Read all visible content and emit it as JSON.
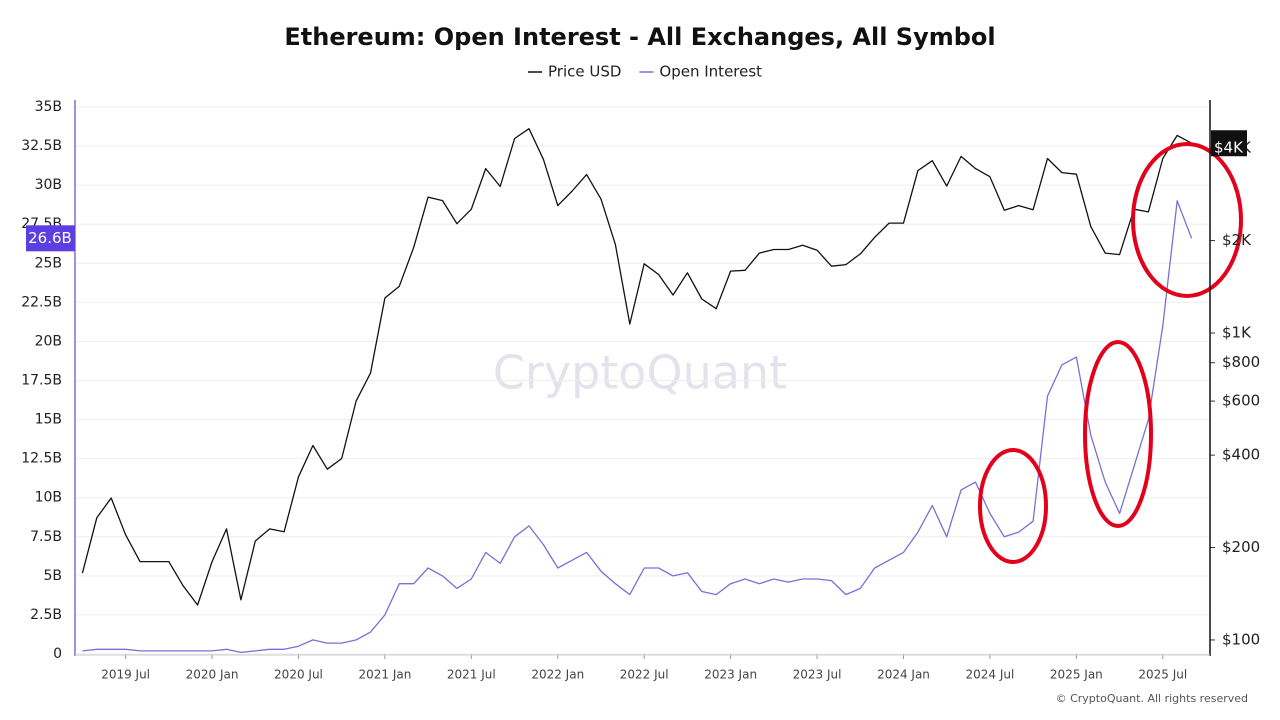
{
  "chart_data": {
    "type": "line",
    "title": "Ethereum: Open Interest - All Exchanges, All Symbol",
    "watermark": "CryptoQuant",
    "footer": "© CryptoQuant. All rights reserved",
    "x": [
      "2019-04",
      "2019-05",
      "2019-06",
      "2019-07",
      "2019-08",
      "2019-09",
      "2019-10",
      "2019-11",
      "2019-12",
      "2020-01",
      "2020-02",
      "2020-03",
      "2020-04",
      "2020-05",
      "2020-06",
      "2020-07",
      "2020-08",
      "2020-09",
      "2020-10",
      "2020-11",
      "2020-12",
      "2021-01",
      "2021-02",
      "2021-03",
      "2021-04",
      "2021-05",
      "2021-06",
      "2021-07",
      "2021-08",
      "2021-09",
      "2021-10",
      "2021-11",
      "2021-12",
      "2022-01",
      "2022-02",
      "2022-03",
      "2022-04",
      "2022-05",
      "2022-06",
      "2022-07",
      "2022-08",
      "2022-09",
      "2022-10",
      "2022-11",
      "2022-12",
      "2023-01",
      "2023-02",
      "2023-03",
      "2023-04",
      "2023-05",
      "2023-06",
      "2023-07",
      "2023-08",
      "2023-09",
      "2023-10",
      "2023-11",
      "2023-12",
      "2024-01",
      "2024-02",
      "2024-03",
      "2024-04",
      "2024-05",
      "2024-06",
      "2024-07",
      "2024-08",
      "2024-09",
      "2024-10",
      "2024-11",
      "2024-12",
      "2025-01",
      "2025-02",
      "2025-03",
      "2025-04",
      "2025-05",
      "2025-06",
      "2025-07",
      "2025-08",
      "2025-09"
    ],
    "xlim": [
      "2019-03",
      "2025-10"
    ],
    "xticks": [
      {
        "value": "2019-07",
        "label": "2019 Jul"
      },
      {
        "value": "2020-01",
        "label": "2020 Jan"
      },
      {
        "value": "2020-07",
        "label": "2020 Jul"
      },
      {
        "value": "2021-01",
        "label": "2021 Jan"
      },
      {
        "value": "2021-07",
        "label": "2021 Jul"
      },
      {
        "value": "2022-01",
        "label": "2022 Jan"
      },
      {
        "value": "2022-07",
        "label": "2022 Jul"
      },
      {
        "value": "2023-01",
        "label": "2023 Jan"
      },
      {
        "value": "2023-07",
        "label": "2023 Jul"
      },
      {
        "value": "2024-01",
        "label": "2024 Jan"
      },
      {
        "value": "2024-07",
        "label": "2024 Jul"
      },
      {
        "value": "2025-01",
        "label": "2025 Jan"
      },
      {
        "value": "2025-07",
        "label": "2025 Jul"
      }
    ],
    "ylim": [
      0,
      35.45
    ],
    "yticks": [
      0,
      {
        "value": 2.5,
        "label": "2.5B"
      },
      {
        "value": 5,
        "label": "5B"
      },
      {
        "value": 7.5,
        "label": "7.5B"
      },
      {
        "value": 10,
        "label": "10B"
      },
      {
        "value": 12.5,
        "label": "12.5B"
      },
      {
        "value": 15,
        "label": "15B"
      },
      {
        "value": 17.5,
        "label": "17.5B"
      },
      {
        "value": 20,
        "label": "20B"
      },
      {
        "value": 22.5,
        "label": "22.5B"
      },
      {
        "value": 25,
        "label": "25B"
      },
      {
        "value": 27.5,
        "label": "27.5B"
      },
      {
        "value": 30,
        "label": "30B"
      },
      {
        "value": 32.5,
        "label": "32.5B"
      },
      {
        "value": 35,
        "label": "35B"
      }
    ],
    "y2lim": [
      90,
      5740
    ],
    "y2scale": "log",
    "y2ticks": [
      {
        "value": 100,
        "label": "$100"
      },
      {
        "value": 200,
        "label": "$200"
      },
      {
        "value": 400,
        "label": "$400"
      },
      {
        "value": 600,
        "label": "$600"
      },
      {
        "value": 800,
        "label": "$800"
      },
      {
        "value": 1000,
        "label": "$1K"
      },
      {
        "value": 2000,
        "label": "$2K"
      },
      {
        "value": 4000,
        "label": "$4K"
      }
    ],
    "grid": true,
    "legend": "top",
    "series": [
      {
        "name": "Price USD",
        "color": "#111111",
        "axis": "y2",
        "values": [
          165,
          250,
          290,
          220,
          180,
          180,
          180,
          150,
          130,
          180,
          230,
          135,
          210,
          230,
          225,
          340,
          430,
          360,
          390,
          600,
          740,
          1300,
          1420,
          1900,
          2770,
          2700,
          2270,
          2530,
          3430,
          3000,
          4300,
          4630,
          3680,
          2600,
          2900,
          3280,
          2730,
          1940,
          1070,
          1680,
          1550,
          1330,
          1570,
          1290,
          1200,
          1590,
          1600,
          1820,
          1870,
          1870,
          1930,
          1860,
          1650,
          1670,
          1810,
          2050,
          2280,
          2280,
          3380,
          3640,
          3010,
          3760,
          3430,
          3230,
          2510,
          2600,
          2520,
          3700,
          3330,
          3290,
          2220,
          1820,
          1800,
          2530,
          2480,
          3700,
          4400,
          4150
        ]
      },
      {
        "name": "Open Interest",
        "color": "#7b6fd6",
        "axis": "y",
        "values": [
          0.2,
          0.3,
          0.3,
          0.3,
          0.2,
          0.2,
          0.2,
          0.2,
          0.2,
          0.2,
          0.3,
          0.1,
          0.2,
          0.3,
          0.3,
          0.5,
          0.9,
          0.7,
          0.7,
          0.9,
          1.4,
          2.5,
          4.5,
          4.5,
          5.5,
          5.0,
          4.2,
          4.8,
          6.5,
          5.8,
          7.5,
          8.2,
          7.0,
          5.5,
          6.0,
          6.5,
          5.3,
          4.5,
          3.8,
          5.5,
          5.5,
          5.0,
          5.2,
          4.0,
          3.8,
          4.5,
          4.8,
          4.5,
          4.8,
          4.6,
          4.8,
          4.8,
          4.7,
          3.8,
          4.2,
          5.5,
          6.0,
          6.5,
          7.8,
          9.5,
          7.5,
          10.5,
          11.0,
          9.0,
          7.5,
          7.8,
          8.5,
          16.5,
          18.5,
          19.0,
          14.0,
          11.0,
          9.0,
          12.0,
          15.0,
          21.0,
          29.0,
          26.6
        ]
      }
    ],
    "annotations": [
      {
        "text": "26.6B",
        "value": 26.6,
        "axis": "y"
      }
    ]
  }
}
